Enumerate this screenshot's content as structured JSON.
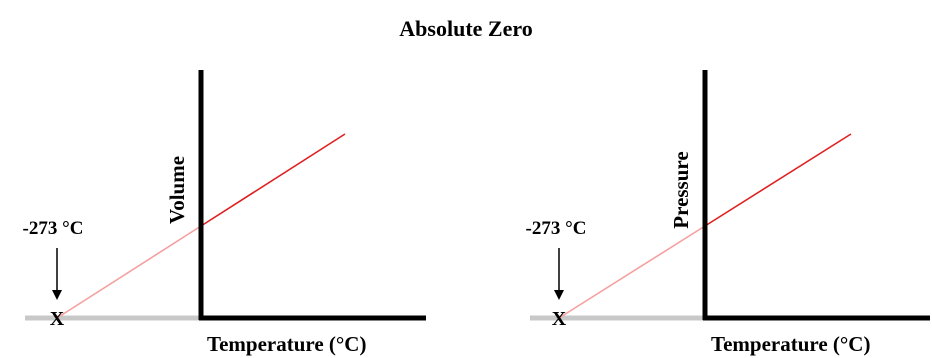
{
  "title": "Absolute Zero",
  "colors": {
    "axis": "#000000",
    "extrapolation": "#f5a0a0",
    "measured": "#e02020",
    "baseline": "#c8c8c8"
  },
  "chart_data": [
    {
      "type": "line",
      "title": "",
      "xlabel": "Temperature (°C)",
      "ylabel": "Volume",
      "annotation": "-273 °C",
      "marker": "X",
      "intercept_x": -273,
      "series": [
        {
          "style": "extrapolated",
          "x": [
            -273,
            0
          ],
          "y": [
            0,
            1
          ]
        },
        {
          "style": "measured",
          "x": [
            0,
            273
          ],
          "y": [
            1,
            2
          ]
        }
      ],
      "grid": false
    },
    {
      "type": "line",
      "title": "",
      "xlabel": "Temperature (°C)",
      "ylabel": "Pressure",
      "annotation": "-273 °C",
      "marker": "X",
      "intercept_x": -273,
      "series": [
        {
          "style": "extrapolated",
          "x": [
            -273,
            0
          ],
          "y": [
            0,
            1
          ]
        },
        {
          "style": "measured",
          "x": [
            0,
            273
          ],
          "y": [
            1,
            2
          ]
        }
      ],
      "grid": false
    }
  ]
}
